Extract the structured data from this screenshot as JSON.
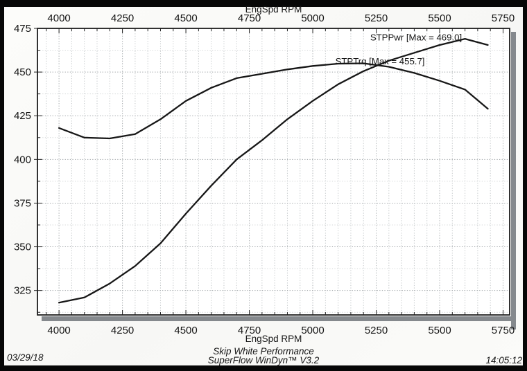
{
  "scan": {
    "date": "03/29/18",
    "time": "14:05:12"
  },
  "footer": {
    "line1": "Skip White Performance",
    "line2": "SuperFlow WinDyn™ V3.2"
  },
  "chart_data": {
    "type": "line",
    "title_top": "EngSpd RPM",
    "xlabel": "EngSpd RPM",
    "ylabel": "",
    "x_range": [
      3915,
      5776
    ],
    "y_range": [
      311,
      475
    ],
    "x_major_ticks": [
      4000,
      4250,
      4500,
      4750,
      5000,
      5250,
      5500,
      5750
    ],
    "x_minor_step": 50,
    "y_major_ticks": [
      325,
      350,
      375,
      400,
      425,
      450,
      475
    ],
    "y_minor_step": 12.5,
    "grid": true,
    "legend_position": "labels-on-plot",
    "x": [
      4000,
      4100,
      4200,
      4300,
      4400,
      4500,
      4600,
      4700,
      4800,
      4900,
      5000,
      5100,
      5200,
      5300,
      5400,
      5500,
      5600,
      5690
    ],
    "series": [
      {
        "name": "STPPwr",
        "label": "STPPwr [Max = 469.0]",
        "max": 469.0,
        "label_anchor": {
          "rpm": 5407,
          "value": 469.8
        },
        "values": [
          318,
          321,
          329,
          339,
          352,
          369,
          385,
          400,
          411,
          423,
          433.5,
          443,
          450.5,
          456.5,
          461,
          465.5,
          469,
          465.5
        ]
      },
      {
        "name": "STPTrq",
        "label": "STPTrq [Max = 455.7]",
        "max": 455.7,
        "label_anchor": {
          "rpm": 5265,
          "value": 456.2
        },
        "values": [
          418,
          412.5,
          412,
          414.5,
          423,
          433.5,
          441,
          446.5,
          449,
          451.5,
          453.5,
          454.8,
          455,
          453,
          449.5,
          445,
          440,
          429
        ]
      }
    ],
    "colors": {
      "curve": "#171717",
      "frame": "#1c1c1c",
      "shadow": "#85898d",
      "grid_v": "#c3c7c9",
      "grid_v_major": "#b2b6b8",
      "grid_h_major": "#9fa4a7",
      "grid_h_minor": "#d4d7d8",
      "tick": "#222222",
      "text": "#151515"
    }
  }
}
